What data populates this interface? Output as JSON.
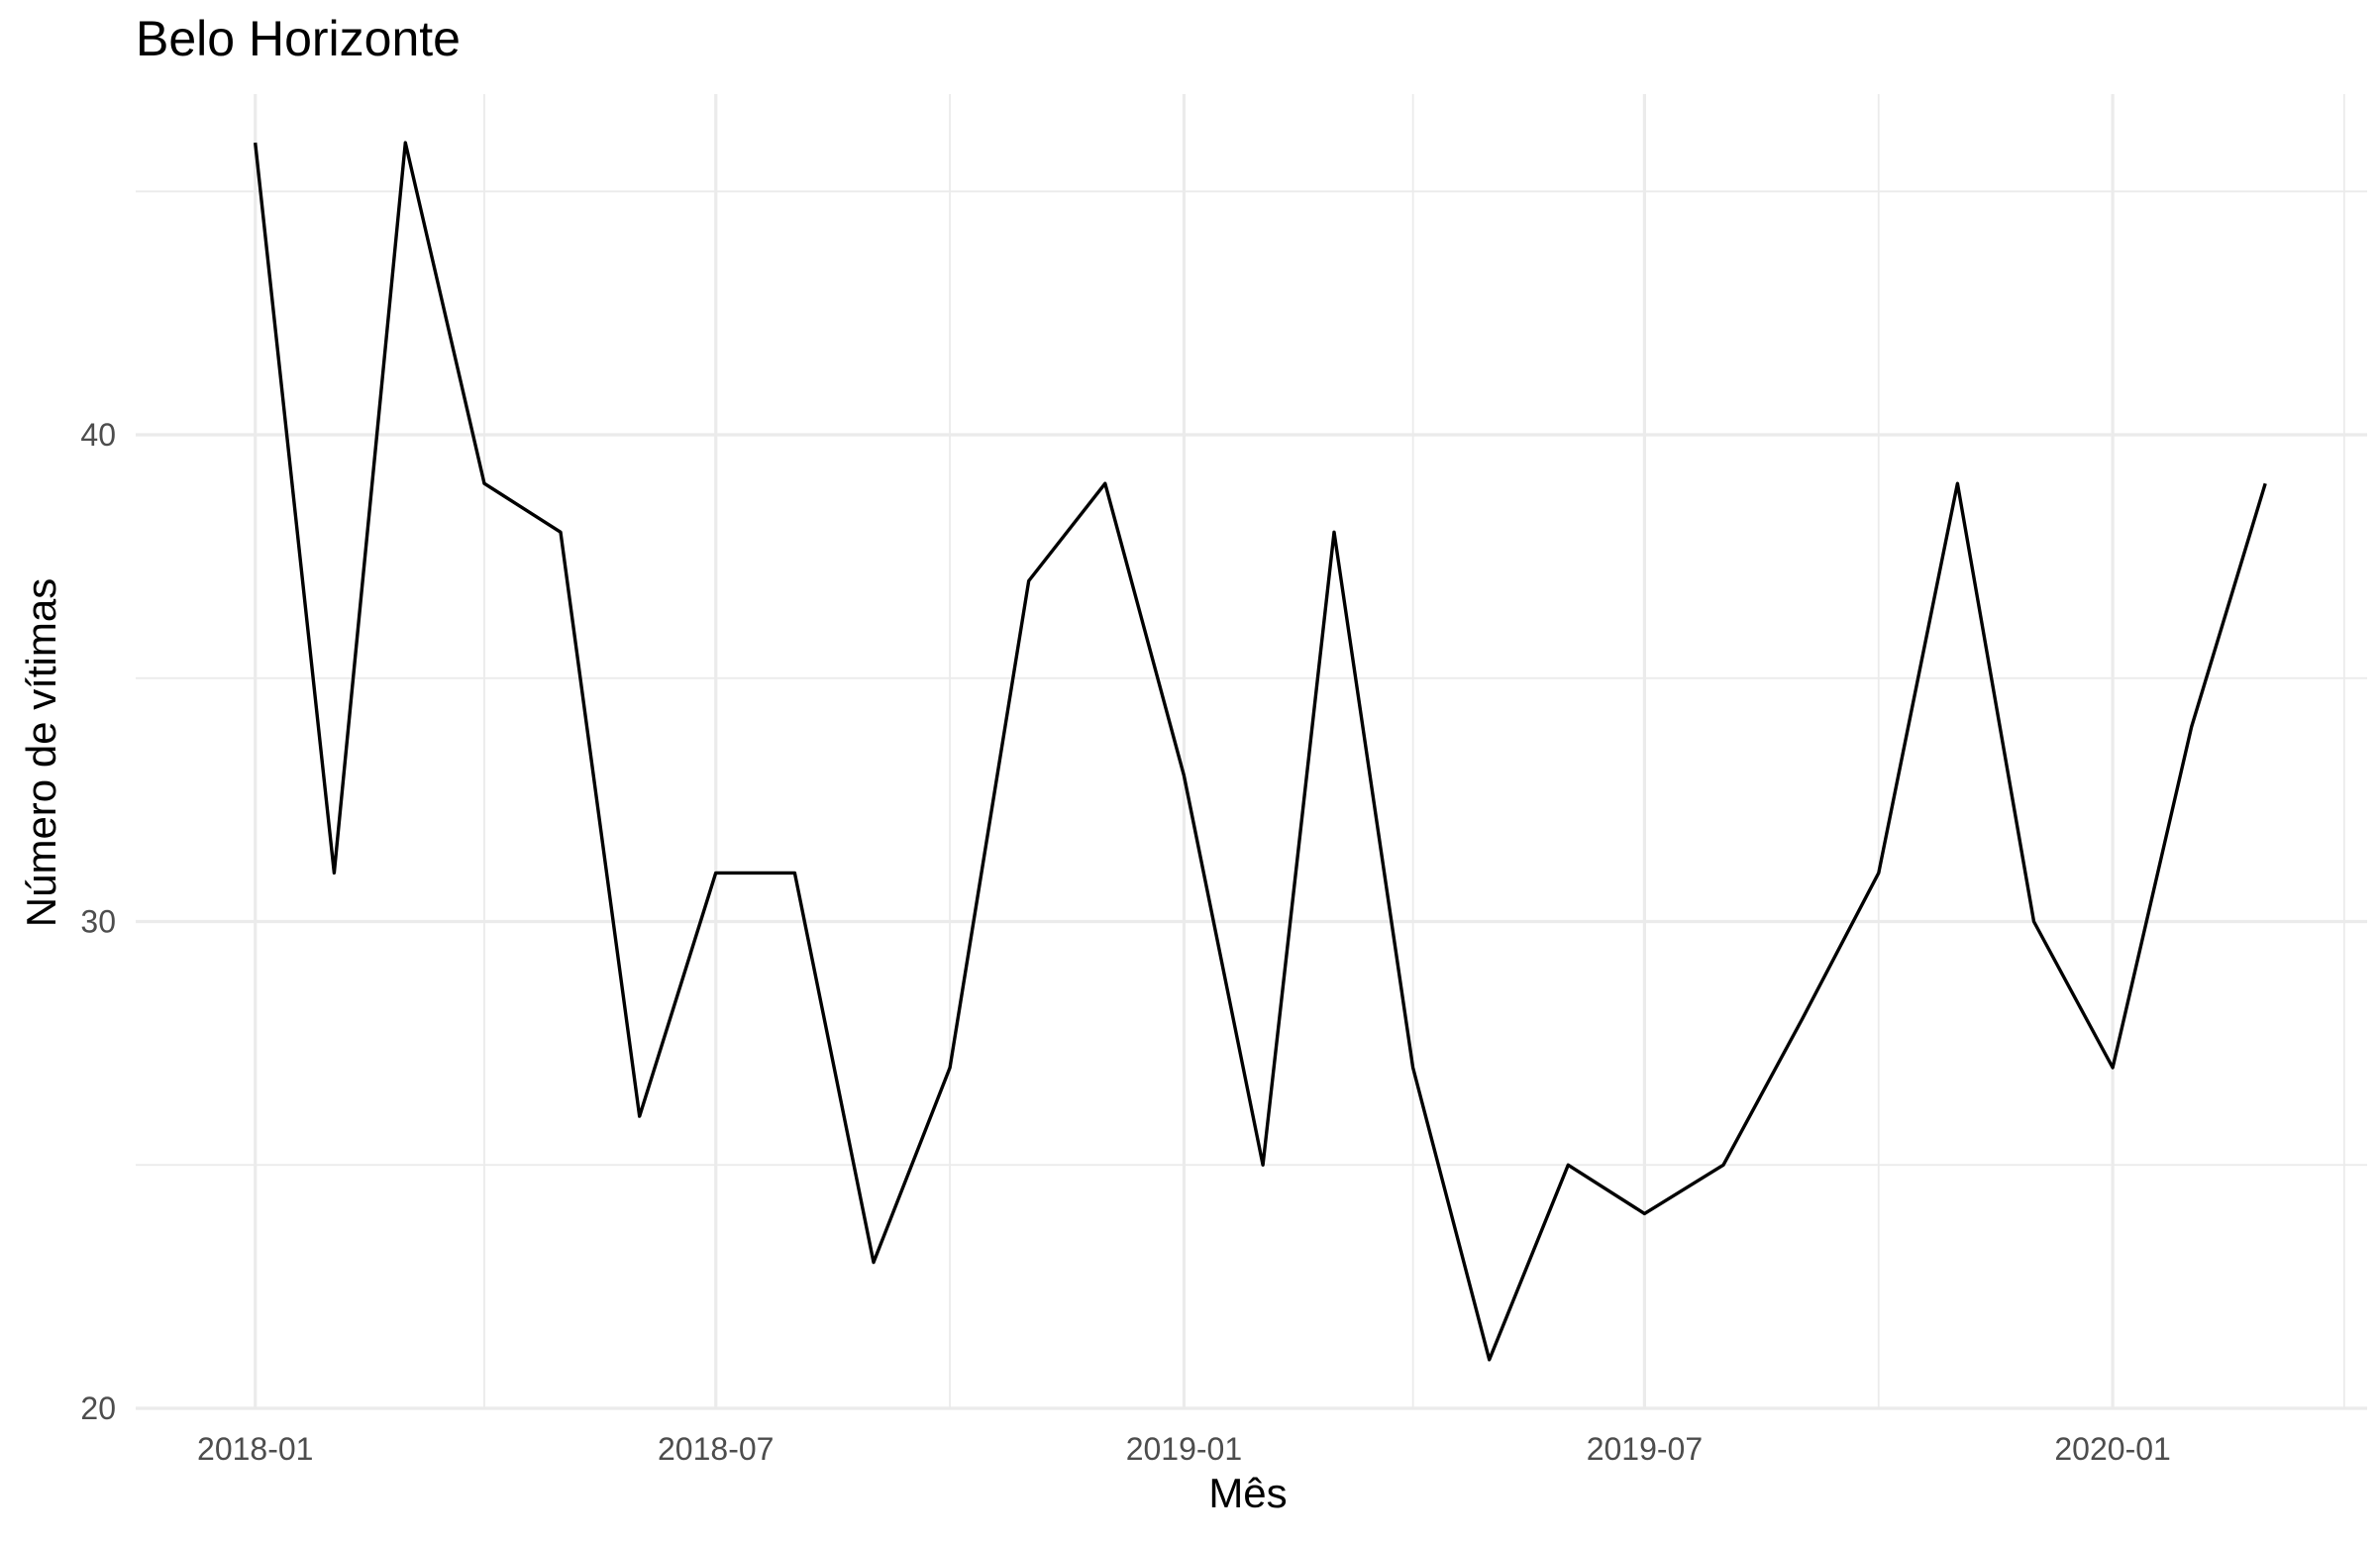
{
  "chart_data": {
    "type": "line",
    "title": "Belo Horizonte",
    "xlabel": "Mês",
    "ylabel": "Número de vítimas",
    "x": [
      "2018-01",
      "2018-02",
      "2018-03",
      "2018-04",
      "2018-05",
      "2018-06",
      "2018-07",
      "2018-08",
      "2018-09",
      "2018-10",
      "2018-11",
      "2018-12",
      "2019-01",
      "2019-02",
      "2019-03",
      "2019-04",
      "2019-05",
      "2019-06",
      "2019-07",
      "2019-08",
      "2019-09",
      "2019-10",
      "2019-11",
      "2019-12",
      "2020-01",
      "2020-02",
      "2020-03"
    ],
    "series": [
      {
        "values": [
          46,
          31,
          46,
          39,
          38,
          26,
          31,
          31,
          23,
          27,
          37,
          39,
          33,
          25,
          38,
          27,
          21,
          25,
          24,
          25,
          28,
          31,
          39,
          30,
          27,
          34,
          39
        ],
        "color": "#000000"
      }
    ],
    "x_ticks": [
      "2018-01",
      "2018-07",
      "2019-01",
      "2019-07",
      "2020-01"
    ],
    "y_ticks": [
      20,
      30,
      40
    ],
    "ylim": [
      20,
      47
    ],
    "xlim": [
      "2017-11-15",
      "2020-04-10"
    ],
    "grid": true,
    "legend": "none",
    "colors": {
      "line": "#000000",
      "grid": "#ebebeb",
      "tick_text": "#4d4d4d"
    }
  }
}
